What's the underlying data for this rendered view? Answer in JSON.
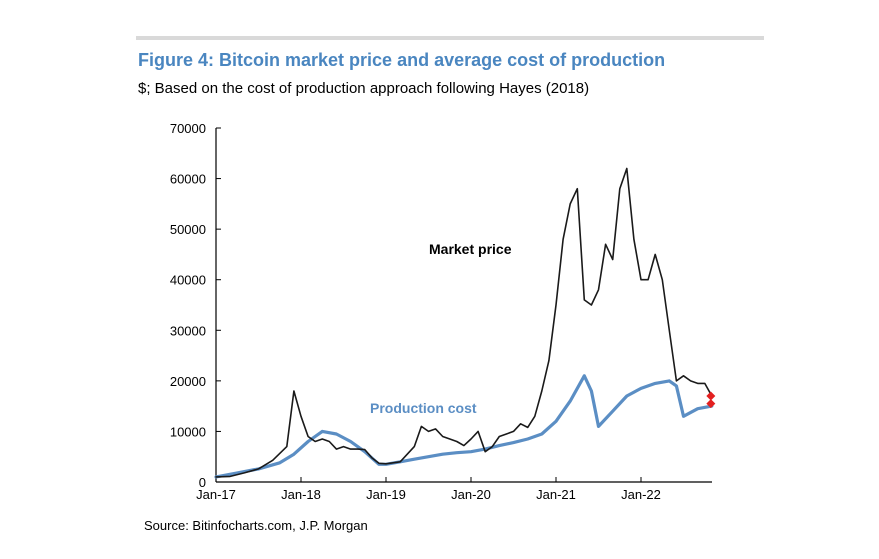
{
  "header": {
    "title": "Figure 4: Bitcoin market price and average cost of production",
    "subtitle": "$; Based on the cost of production approach following Hayes (2018)"
  },
  "footer": {
    "source": "Source: Bitinfocharts.com, J.P. Morgan"
  },
  "colors": {
    "title": "#4a86c0",
    "market_price": "#1a1a1a",
    "production_cost": "#5b8ec4",
    "marker": "#e32020"
  },
  "chart_data": {
    "type": "line",
    "title": "Figure 4: Bitcoin market price and average cost of production",
    "subtitle": "$; Based on the cost of production approach following Hayes (2018)",
    "xlabel": "",
    "ylabel": "",
    "x_ticks": [
      "Jan-17",
      "Jan-18",
      "Jan-19",
      "Jan-20",
      "Jan-21",
      "Jan-22"
    ],
    "y_ticks": [
      0,
      10000,
      20000,
      30000,
      40000,
      50000,
      60000,
      70000
    ],
    "xlim": [
      "2017-01",
      "2022-11"
    ],
    "ylim": [
      0,
      70000
    ],
    "grid": false,
    "legend": "none",
    "annotations": [
      {
        "text": "Market price",
        "series": "Market price"
      },
      {
        "text": "Production cost",
        "series": "Production cost"
      }
    ],
    "series": [
      {
        "name": "Market price",
        "x": [
          "2017-01",
          "2017-03",
          "2017-05",
          "2017-07",
          "2017-09",
          "2017-11",
          "2017-12",
          "2018-01",
          "2018-02",
          "2018-03",
          "2018-04",
          "2018-05",
          "2018-06",
          "2018-07",
          "2018-08",
          "2018-09",
          "2018-10",
          "2018-11",
          "2018-12",
          "2019-01",
          "2019-03",
          "2019-05",
          "2019-06",
          "2019-07",
          "2019-08",
          "2019-09",
          "2019-10",
          "2019-11",
          "2019-12",
          "2020-01",
          "2020-02",
          "2020-03",
          "2020-04",
          "2020-05",
          "2020-06",
          "2020-07",
          "2020-08",
          "2020-09",
          "2020-10",
          "2020-11",
          "2020-12",
          "2021-01",
          "2021-02",
          "2021-03",
          "2021-04",
          "2021-05",
          "2021-06",
          "2021-07",
          "2021-08",
          "2021-09",
          "2021-10",
          "2021-11",
          "2021-12",
          "2022-01",
          "2022-02",
          "2022-03",
          "2022-04",
          "2022-05",
          "2022-06",
          "2022-07",
          "2022-08",
          "2022-09",
          "2022-10",
          "2022-11"
        ],
        "y": [
          1000,
          1100,
          1800,
          2600,
          4300,
          7000,
          18000,
          13000,
          9000,
          8000,
          8500,
          8000,
          6500,
          7000,
          6500,
          6500,
          6400,
          4800,
          3700,
          3600,
          4000,
          7000,
          11000,
          10000,
          10500,
          9000,
          8500,
          8000,
          7200,
          8500,
          10000,
          6000,
          7000,
          9000,
          9500,
          10000,
          11500,
          10800,
          13000,
          18000,
          24000,
          35000,
          48000,
          55000,
          58000,
          36000,
          35000,
          38000,
          47000,
          44000,
          58000,
          62000,
          48000,
          40000,
          40000,
          45000,
          40000,
          30000,
          20000,
          21000,
          20000,
          19500,
          19500,
          17000
        ]
      },
      {
        "name": "Production cost",
        "x": [
          "2017-01",
          "2017-04",
          "2017-07",
          "2017-10",
          "2017-12",
          "2018-02",
          "2018-04",
          "2018-06",
          "2018-08",
          "2018-10",
          "2018-12",
          "2019-01",
          "2019-03",
          "2019-05",
          "2019-07",
          "2019-09",
          "2019-11",
          "2020-01",
          "2020-03",
          "2020-05",
          "2020-07",
          "2020-09",
          "2020-11",
          "2021-01",
          "2021-03",
          "2021-05",
          "2021-06",
          "2021-07",
          "2021-09",
          "2021-11",
          "2022-01",
          "2022-03",
          "2022-05",
          "2022-06",
          "2022-07",
          "2022-09",
          "2022-11"
        ],
        "y": [
          1000,
          1800,
          2600,
          3800,
          5500,
          8000,
          10000,
          9500,
          8000,
          6000,
          3500,
          3500,
          4000,
          4500,
          5000,
          5500,
          5800,
          6000,
          6500,
          7200,
          7800,
          8500,
          9500,
          12000,
          16000,
          21000,
          18000,
          11000,
          14000,
          17000,
          18500,
          19500,
          20000,
          19000,
          13000,
          14500,
          15000
        ]
      },
      {
        "name": "",
        "type": "scatter",
        "x": [
          "2022-11",
          "2022-11"
        ],
        "y": [
          17000,
          15500
        ]
      }
    ]
  }
}
